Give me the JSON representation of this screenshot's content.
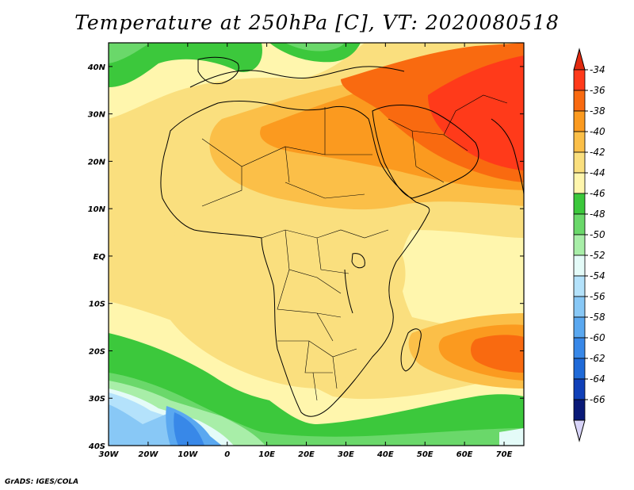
{
  "title": "Temperature at 250hPa [C], VT: 2020080518",
  "footer": "GrADS: IGES/COLA",
  "map": {
    "lon_range": [
      -30,
      75
    ],
    "lat_range": [
      -40,
      45
    ],
    "lon_ticks": [
      "30W",
      "20W",
      "10W",
      "0",
      "10E",
      "20E",
      "30E",
      "40E",
      "50E",
      "60E",
      "70E"
    ],
    "lat_ticks": [
      "40S",
      "30S",
      "20S",
      "10S",
      "EQ",
      "10N",
      "20N",
      "30N",
      "40N"
    ]
  },
  "colorbar": {
    "labels": [
      "-34",
      "-36",
      "-38",
      "-40",
      "-42",
      "-44",
      "-46",
      "-48",
      "-50",
      "-52",
      "-54",
      "-56",
      "-58",
      "-60",
      "-62",
      "-64",
      "-66"
    ],
    "colors": [
      "#ff3a1a",
      "#f96a10",
      "#fb9a1f",
      "#fbbf48",
      "#fadf7e",
      "#fff6ad",
      "#3cc83c",
      "#6ad86a",
      "#a8eea8",
      "#e4fbf8",
      "#b4e2fb",
      "#88c8f6",
      "#5aa8f0",
      "#3888e8",
      "#1f6ad8",
      "#1040b8",
      "#0a1a78"
    ],
    "top_arrow": "#e22a10",
    "bottom_arrow": "#d8d4f8"
  },
  "field_colors": {
    "c34": "#ff3a1a",
    "c36": "#f96a10",
    "c38": "#fb9a1f",
    "c40": "#fbbf48",
    "c42": "#fadf7e",
    "c44": "#fff6ad",
    "c46": "#3cc83c",
    "c48": "#6ad86a",
    "c50": "#a8eea8",
    "c52": "#e4fbf8",
    "c54": "#b4e2fb",
    "c56": "#88c8f6",
    "c58": "#5aa8f0",
    "c60": "#3888e8"
  }
}
